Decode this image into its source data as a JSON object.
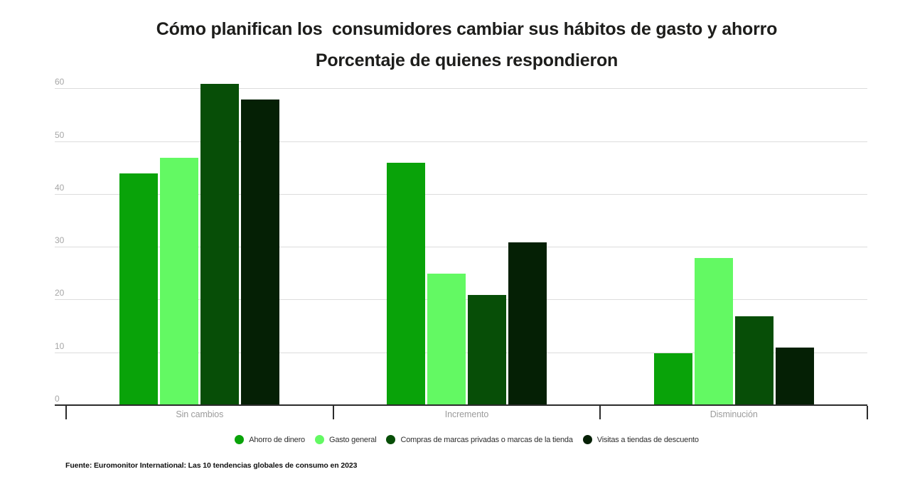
{
  "chart_data": {
    "type": "bar",
    "title": "Cómo planifican los  consumidores cambiar sus hábitos de gasto y ahorro",
    "subtitle": "Porcentaje de quienes respondieron",
    "categories": [
      "Sin cambios",
      "Incremento",
      "Disminución"
    ],
    "series": [
      {
        "name": "Ahorro de dinero",
        "color": "#09a309",
        "values": [
          44,
          46,
          10
        ]
      },
      {
        "name": "Gasto general",
        "color": "#63f963",
        "values": [
          47,
          25,
          28
        ]
      },
      {
        "name": "Compras de marcas privadas o marcas de la tienda",
        "color": "#074e07",
        "values": [
          61,
          21,
          17
        ]
      },
      {
        "name": "Visitas a tiendas de descuento",
        "color": "#052005",
        "values": [
          58,
          31,
          11
        ]
      }
    ],
    "xlabel": "",
    "ylabel": "",
    "yticks": [
      0,
      10,
      20,
      30,
      40,
      50,
      60
    ],
    "ylim": [
      0,
      63
    ],
    "grid": true,
    "legend_position": "bottom",
    "source": "Fuente: Euromonitor International: Las 10 tendencias globales de consumo en 2023"
  },
  "colors": {
    "axis": "#2b2b2b",
    "gridline": "#dcdcdc",
    "y_tick_label": "#a6a6a6",
    "category_label": "#9b9b9b",
    "title_text": "#1d1d1b"
  }
}
